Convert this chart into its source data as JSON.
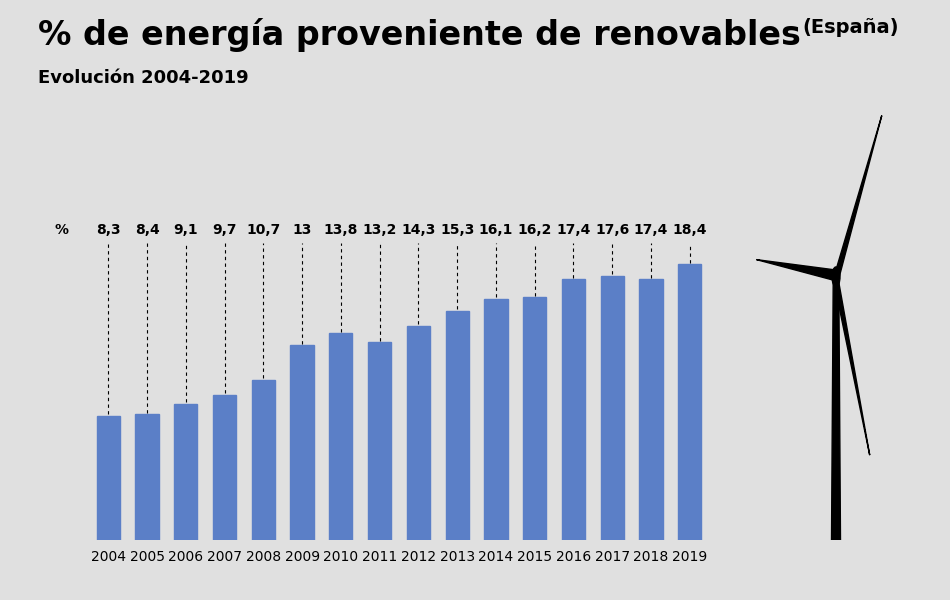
{
  "years": [
    2004,
    2005,
    2006,
    2007,
    2008,
    2009,
    2010,
    2011,
    2012,
    2013,
    2014,
    2015,
    2016,
    2017,
    2018,
    2019
  ],
  "values": [
    8.3,
    8.4,
    9.1,
    9.7,
    10.7,
    13.0,
    13.8,
    13.2,
    14.3,
    15.3,
    16.1,
    16.2,
    17.4,
    17.6,
    17.4,
    18.4
  ],
  "bar_color": "#5b7fc7",
  "background_color": "#e0e0e0",
  "title_main": "% de energía proveniente de renovables",
  "title_suffix": "(España)",
  "subtitle": "Evolución 2004-2019",
  "ylabel": "%",
  "ylim": [
    0,
    22
  ],
  "title_fontsize": 24,
  "title_suffix_fontsize": 14,
  "subtitle_fontsize": 13,
  "label_fontsize": 10,
  "bar_width": 0.6
}
